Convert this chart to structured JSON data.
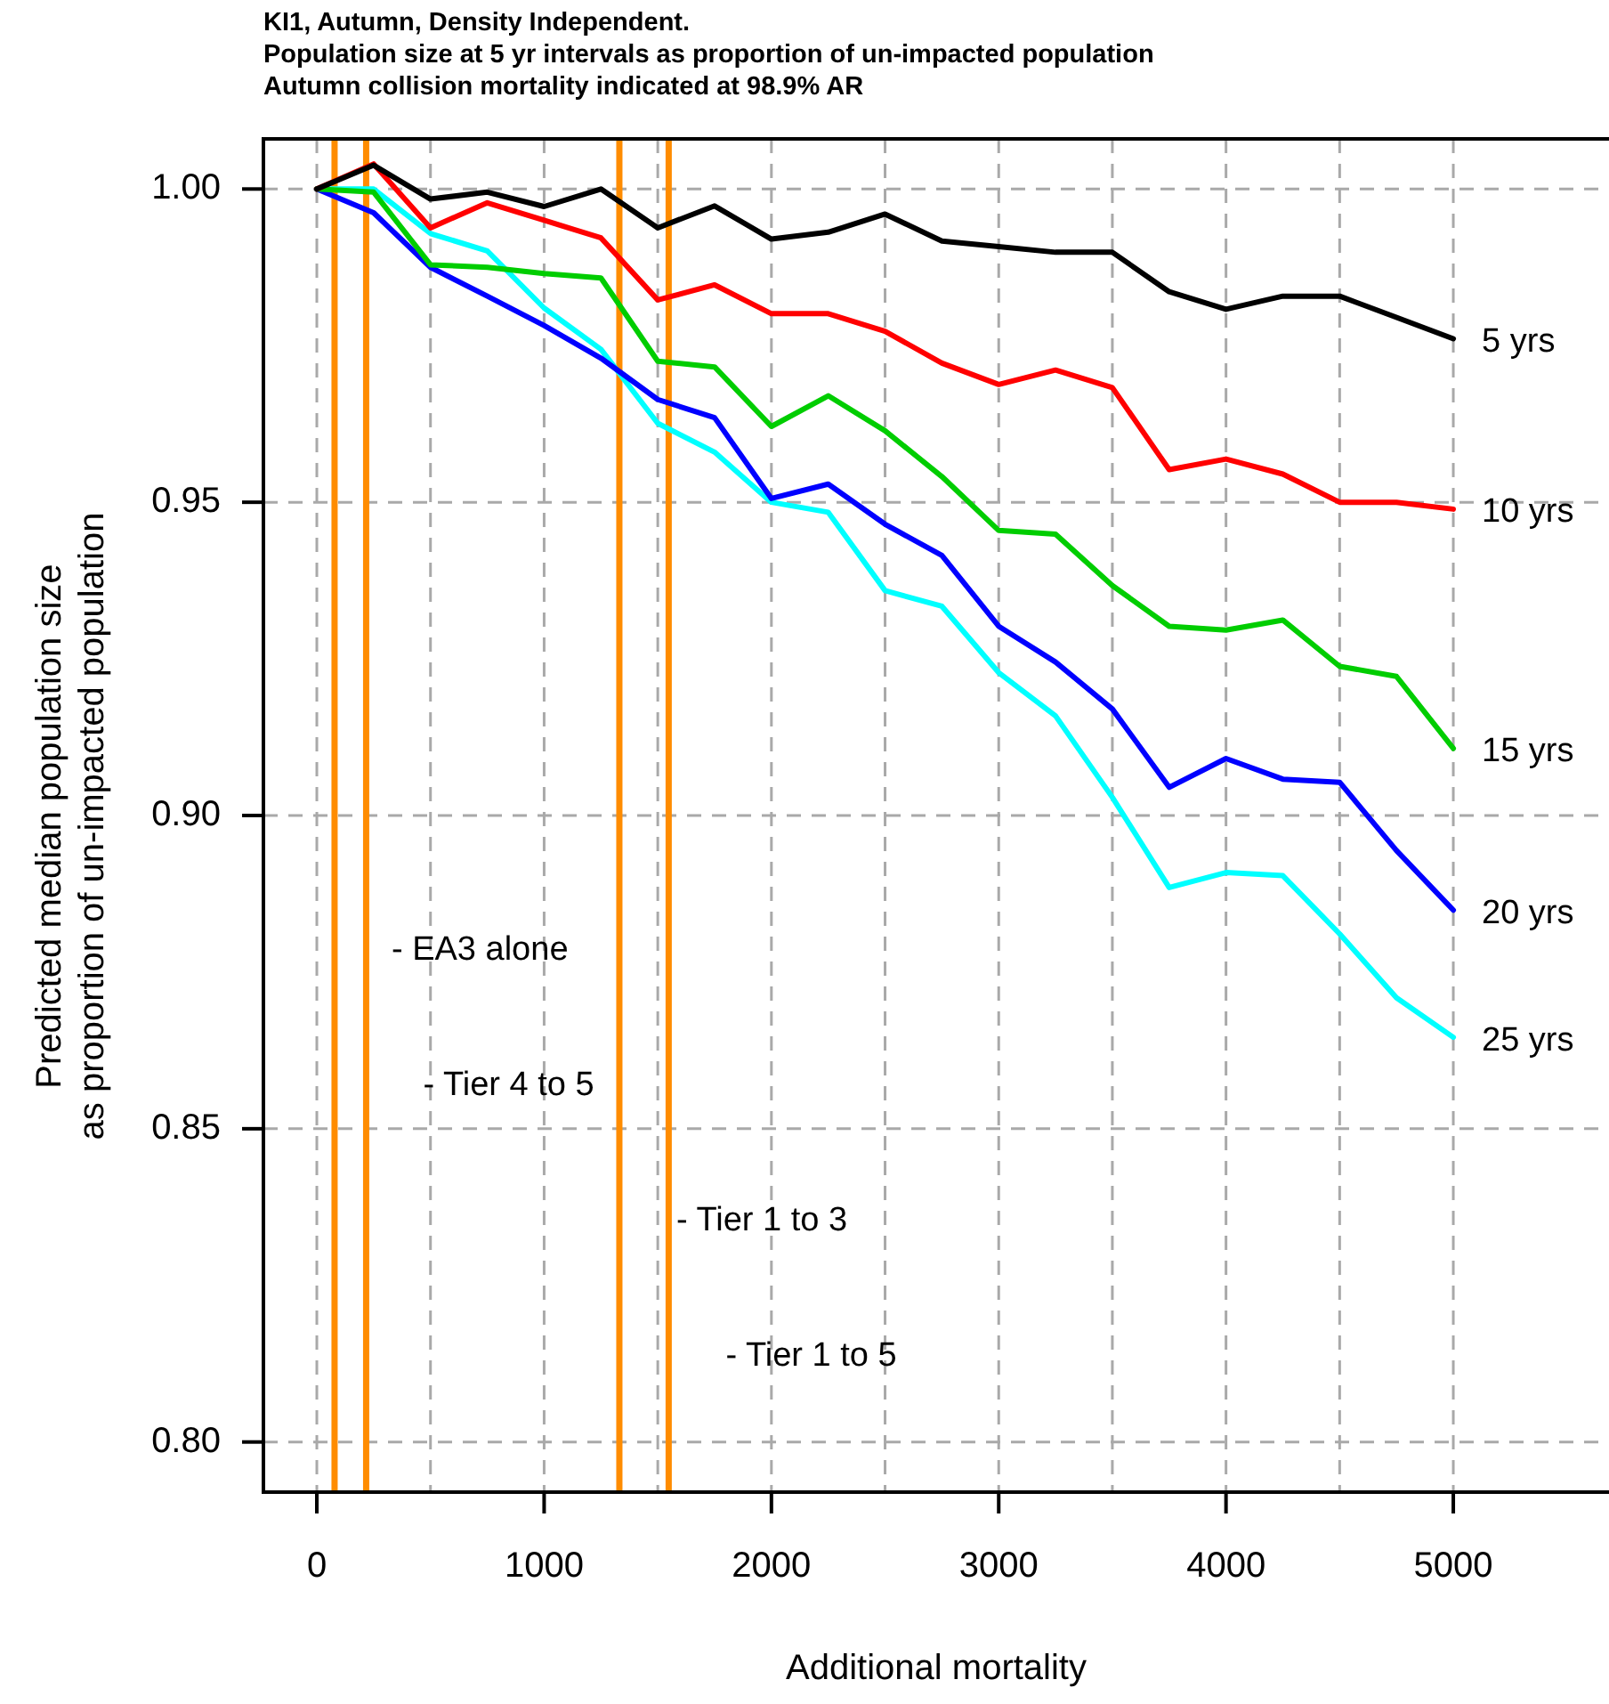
{
  "chart_data": {
    "type": "line",
    "title": "KI1, Autumn, Density Independent.\nPopulation size at 5 yr intervals as proportion of un-impacted population\nAutumn collision mortality indicated at 98.9% AR",
    "xlabel": "Additional mortality",
    "ylabel": "Predicted median population size\nas proportion of un-impacted population",
    "x": [
      0,
      250,
      500,
      750,
      1000,
      1250,
      1500,
      1750,
      2000,
      2250,
      2500,
      2750,
      3000,
      3250,
      3500,
      3750,
      4000,
      4250,
      4500,
      4750,
      5000
    ],
    "series": [
      {
        "name": "5 yrs",
        "color": "#000000",
        "values": [
          1.0,
          1.0038,
          0.9984,
          0.9995,
          0.9972,
          1.0,
          0.9938,
          0.9973,
          0.992,
          0.9931,
          0.996,
          0.9917,
          0.9908,
          0.9899,
          0.9899,
          0.9836,
          0.9808,
          0.9829,
          0.9829,
          0.9795,
          0.9761
        ]
      },
      {
        "name": "10 yrs",
        "color": "#ff0000",
        "values": [
          1.0,
          1.004,
          0.9938,
          0.9978,
          0.995,
          0.9922,
          0.9823,
          0.9847,
          0.9801,
          0.9801,
          0.9773,
          0.9722,
          0.9688,
          0.9711,
          0.9683,
          0.9552,
          0.9569,
          0.9545,
          0.95,
          0.95,
          0.9489
        ]
      },
      {
        "name": "15 yrs",
        "color": "#00cd00",
        "values": [
          1.0,
          0.9995,
          0.9879,
          0.9875,
          0.9865,
          0.9858,
          0.9725,
          0.9716,
          0.9621,
          0.967,
          0.9614,
          0.9541,
          0.9455,
          0.9449,
          0.9367,
          0.9302,
          0.9296,
          0.9312,
          0.9238,
          0.9222,
          0.9107
        ]
      },
      {
        "name": "20 yrs",
        "color": "#0000ff",
        "values": [
          1.0,
          0.9962,
          0.9875,
          0.9829,
          0.9782,
          0.973,
          0.9664,
          0.9635,
          0.9506,
          0.9529,
          0.9465,
          0.9415,
          0.9302,
          0.9245,
          0.917,
          0.9045,
          0.9091,
          0.9058,
          0.9053,
          0.8944,
          0.8849
        ]
      },
      {
        "name": "25 yrs",
        "color": "#00ffff",
        "values": [
          1.0,
          1.0,
          0.9929,
          0.9901,
          0.981,
          0.9744,
          0.9626,
          0.958,
          0.95,
          0.9484,
          0.9359,
          0.9334,
          0.9228,
          0.9159,
          0.9029,
          0.8885,
          0.8909,
          0.8904,
          0.8811,
          0.8709,
          0.8646
        ]
      }
    ],
    "xlim": [
      -235,
      5685
    ],
    "ylim": [
      0.792,
      1.008
    ],
    "xticks": [
      0,
      {
        "value": 500,
        "label": null
      },
      1000,
      {
        "value": 1500,
        "label": null
      },
      2000,
      {
        "value": 2500,
        "label": null
      },
      3000,
      {
        "value": 3500,
        "label": null
      },
      4000,
      {
        "value": 4500,
        "label": null
      },
      5000
    ],
    "yticks": [
      {
        "value": 0.8,
        "label": "0.80"
      },
      {
        "value": 0.85,
        "label": "0.85"
      },
      {
        "value": 0.9,
        "label": "0.90"
      },
      {
        "value": 0.95,
        "label": "0.95"
      },
      {
        "value": 1.0,
        "label": "1.00"
      }
    ],
    "grid": true,
    "ref_lines": [
      {
        "axis": "x",
        "value": 78,
        "label": "- EA3 alone",
        "color": "#ff8c00"
      },
      {
        "axis": "x",
        "value": 217,
        "label": "- Tier 4 to 5",
        "color": "#ff8c00"
      },
      {
        "axis": "x",
        "value": 1331,
        "label": "- Tier 1 to 3",
        "color": "#ff8c00"
      },
      {
        "axis": "x",
        "value": 1548,
        "label": "- Tier 1 to 5",
        "color": "#ff8c00"
      }
    ]
  }
}
